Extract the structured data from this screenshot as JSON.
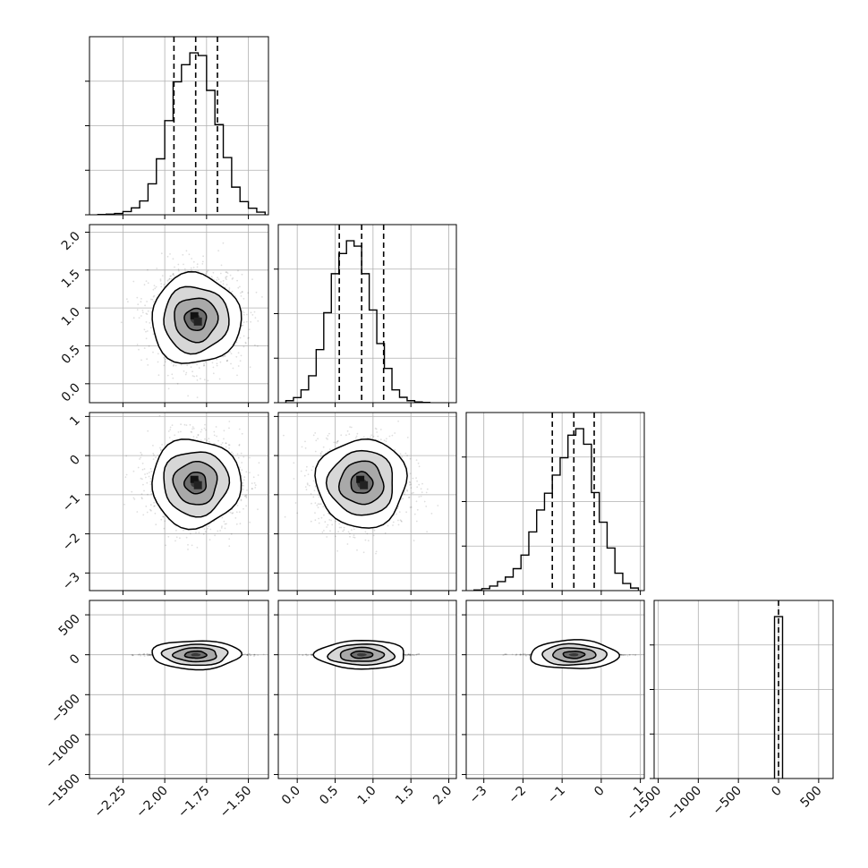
{
  "chart_data": {
    "type": "corner",
    "grid": true,
    "parameters": [
      {
        "range": [
          -2.45,
          -1.38
        ],
        "ticks": [
          -2.25,
          -2.0,
          -1.75,
          -1.5
        ],
        "tick_labels": [
          "−2.25",
          "−2.00",
          "−1.75",
          "−1.50"
        ],
        "quantiles": [
          -1.945,
          -1.815,
          -1.685
        ],
        "mean": -1.815,
        "sd": 0.13,
        "hist": {
          "edges": [
            -2.4,
            -2.35,
            -2.3,
            -2.25,
            -2.2,
            -2.15,
            -2.1,
            -2.05,
            -2.0,
            -1.95,
            -1.9,
            -1.85,
            -1.8,
            -1.75,
            -1.7,
            -1.65,
            -1.6,
            -1.55,
            -1.5,
            -1.45,
            -1.4
          ],
          "counts": [
            2,
            5,
            10,
            24,
            52,
            105,
            235,
            425,
            715,
            1010,
            1140,
            1230,
            1210,
            945,
            685,
            435,
            210,
            100,
            50,
            20
          ]
        }
      },
      {
        "range": [
          -0.25,
          2.1
        ],
        "ticks": [
          0.0,
          0.5,
          1.0,
          1.5,
          2.0
        ],
        "tick_labels": [
          "0.0",
          "0.5",
          "1.0",
          "1.5",
          "2.0"
        ],
        "quantiles": [
          0.555,
          0.85,
          1.14
        ],
        "mean": 0.85,
        "sd": 0.29,
        "hist": {
          "edges": [
            -0.15,
            -0.05,
            0.05,
            0.15,
            0.25,
            0.35,
            0.45,
            0.55,
            0.65,
            0.75,
            0.85,
            0.95,
            1.05,
            1.15,
            1.25,
            1.35,
            1.45,
            1.55,
            1.65,
            1.75
          ],
          "counts": [
            15,
            38,
            95,
            200,
            395,
            670,
            960,
            1110,
            1205,
            1165,
            960,
            690,
            440,
            255,
            95,
            40,
            15,
            5,
            2
          ]
        }
      },
      {
        "range": [
          -3.45,
          1.1
        ],
        "ticks": [
          -3,
          -2,
          -1,
          0,
          1
        ],
        "tick_labels": [
          "−3",
          "−2",
          "−1",
          "0",
          "1"
        ],
        "quantiles": [
          -1.25,
          -0.7,
          -0.18
        ],
        "mean": -0.7,
        "sd": 0.55,
        "hist": {
          "edges": [
            -3.25,
            -3.05,
            -2.85,
            -2.65,
            -2.45,
            -2.25,
            -2.05,
            -1.85,
            -1.65,
            -1.45,
            -1.25,
            -1.05,
            -0.85,
            -0.65,
            -0.45,
            -0.25,
            -0.05,
            0.15,
            0.35,
            0.55,
            0.75,
            0.95
          ],
          "counts": [
            5,
            15,
            35,
            70,
            105,
            170,
            275,
            455,
            625,
            755,
            895,
            1030,
            1205,
            1255,
            1135,
            760,
            530,
            330,
            135,
            55,
            20
          ]
        }
      },
      {
        "range": [
          -1550,
          680
        ],
        "ticks": [
          -1500,
          -1000,
          -500,
          0,
          500
        ],
        "tick_labels": [
          "−1500",
          "−1000",
          "−500",
          "0",
          "500"
        ],
        "quantiles": [
          0
        ],
        "mean": 0,
        "sd": 15,
        "hist": {
          "edges": [
            -50,
            0,
            50
          ],
          "counts": [
            1200,
            1200
          ]
        }
      }
    ],
    "row_y_ticks": [
      null,
      {
        "ticks": [
          0.0,
          0.5,
          1.0,
          1.5,
          2.0
        ],
        "tick_labels": [
          "0.0",
          "0.5",
          "1.0",
          "1.5",
          "2.0"
        ]
      },
      {
        "ticks": [
          -3,
          -2,
          -1,
          0,
          1
        ],
        "tick_labels": [
          "−3",
          "−2",
          "−1",
          "0",
          "1"
        ]
      },
      {
        "ticks": [
          -1500,
          -1000,
          -500,
          0,
          500
        ],
        "tick_labels": [
          "−1500",
          "−1000",
          "−500",
          "0",
          "500"
        ]
      }
    ],
    "hist_ylim_frac": 1.1
  }
}
